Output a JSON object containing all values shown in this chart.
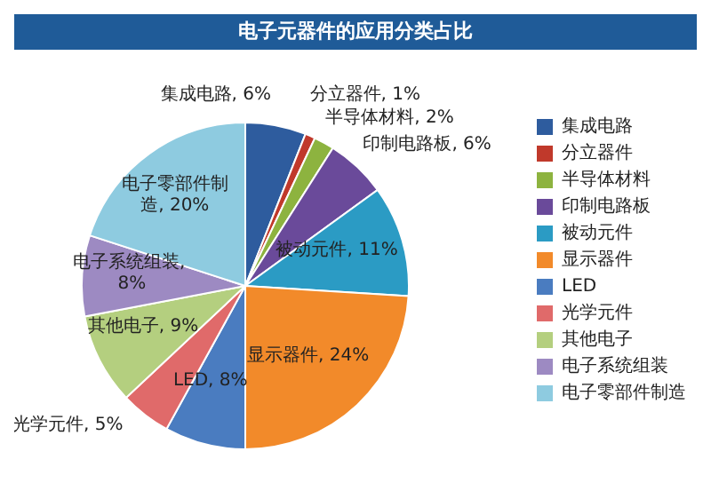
{
  "chart_data": {
    "type": "pie",
    "title": "电子元器件的应用分类占比",
    "categories": [
      "集成电路",
      "分立器件",
      "半导体材料",
      "印制电路板",
      "被动元件",
      "显示器件",
      "LED",
      "光学元件",
      "其他电子",
      "电子系统组装",
      "电子零部件制造"
    ],
    "values": [
      6,
      1,
      2,
      6,
      11,
      24,
      8,
      5,
      9,
      8,
      20
    ],
    "value_labels": [
      "集成电路, 6%",
      "分立器件, 1%",
      "半导体材料, 2%",
      "印制电路板, 6%",
      "被动元件, 11%",
      "显示器件, 24%",
      "LED, 8%",
      "光学元件, 5%",
      "其他电子, 9%",
      "电子系统组装, 8%",
      "电子零部件制造, 20%"
    ],
    "colors": [
      "#2e5c9e",
      "#c0392b",
      "#8db33f",
      "#6a4a9a",
      "#2b9bc4",
      "#f28a2a",
      "#4a7cc0",
      "#e06a6a",
      "#b4cf7f",
      "#9d8ac2",
      "#8ecbe0"
    ],
    "legend": "right"
  }
}
